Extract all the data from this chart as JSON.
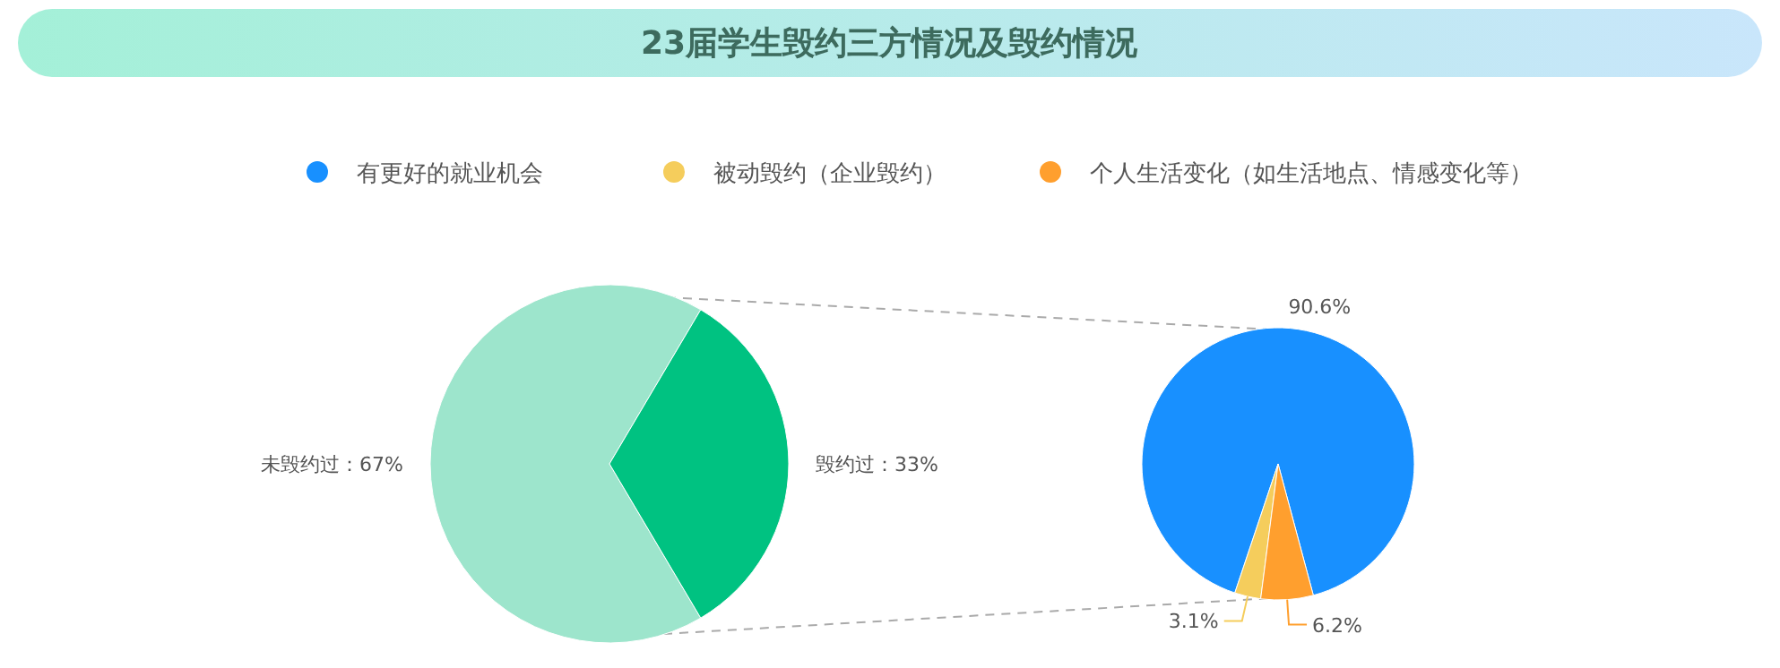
{
  "chart_data": [
    {
      "type": "pie",
      "title": "23届学生毁约三方情况及毁约情况",
      "categories": [
        "未毁约过",
        "毁约过"
      ],
      "values": [
        67,
        33
      ],
      "colors": [
        "#9de5cc",
        "#00c281"
      ],
      "value_labels": [
        "：67%",
        "：33%"
      ]
    },
    {
      "type": "pie",
      "categories": [
        "有更好的就业机会",
        "被动毁约（企业毁约）",
        "个人生活变化（如生活地点、情感变化等）"
      ],
      "values": [
        90.6,
        3.1,
        6.2
      ],
      "colors": [
        "#1890ff",
        "#f5cd5c",
        "#ff9f2e"
      ],
      "value_labels": [
        "90.6%",
        "3.1%",
        "6.2%"
      ],
      "legend": "top"
    }
  ]
}
